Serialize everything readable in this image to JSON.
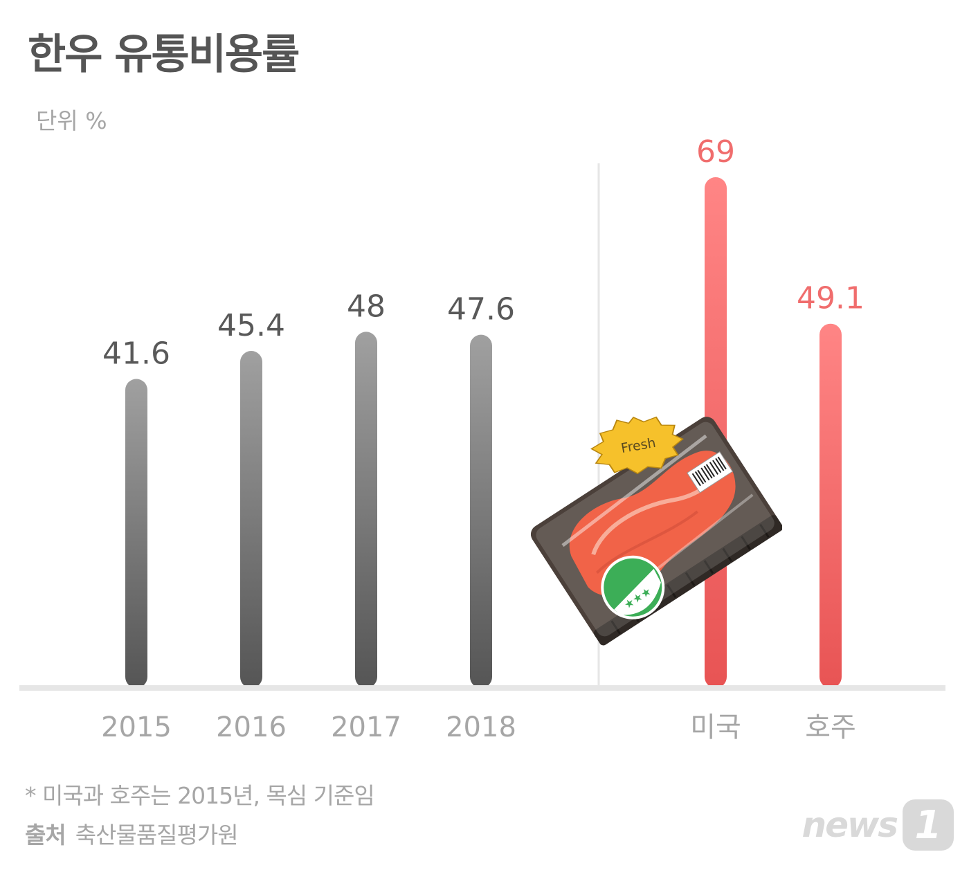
{
  "title": "한우 유통비용률",
  "unit_label": "단위 %",
  "footnote": "* 미국과 호주는 2015년, 목심 기준임",
  "source": {
    "label": "출처",
    "value": "축산물품질평가원"
  },
  "logo": {
    "text": "news",
    "mark": "1"
  },
  "sticker_text": "Fresh",
  "colors": {
    "korea_bar_top": "#a0a0a0",
    "korea_bar_bottom": "#555555",
    "foreign_bar_top": "#ff8585",
    "foreign_bar_bottom": "#e85454",
    "korea_label": "#595959",
    "foreign_label": "#f06d6d",
    "category_label": "#a6a6a6",
    "baseline": "#e6e6e6"
  },
  "chart_data": {
    "type": "bar",
    "categories": [
      "2015",
      "2016",
      "2017",
      "2018",
      "미국",
      "호주"
    ],
    "values": [
      41.6,
      45.4,
      48,
      47.6,
      69,
      49.1
    ],
    "value_labels": [
      "41.6",
      "45.4",
      "48",
      "47.6",
      "69",
      "49.1"
    ],
    "groups": [
      "korea",
      "korea",
      "korea",
      "korea",
      "foreign",
      "foreign"
    ],
    "ylim": [
      0,
      69
    ],
    "grid": false
  }
}
